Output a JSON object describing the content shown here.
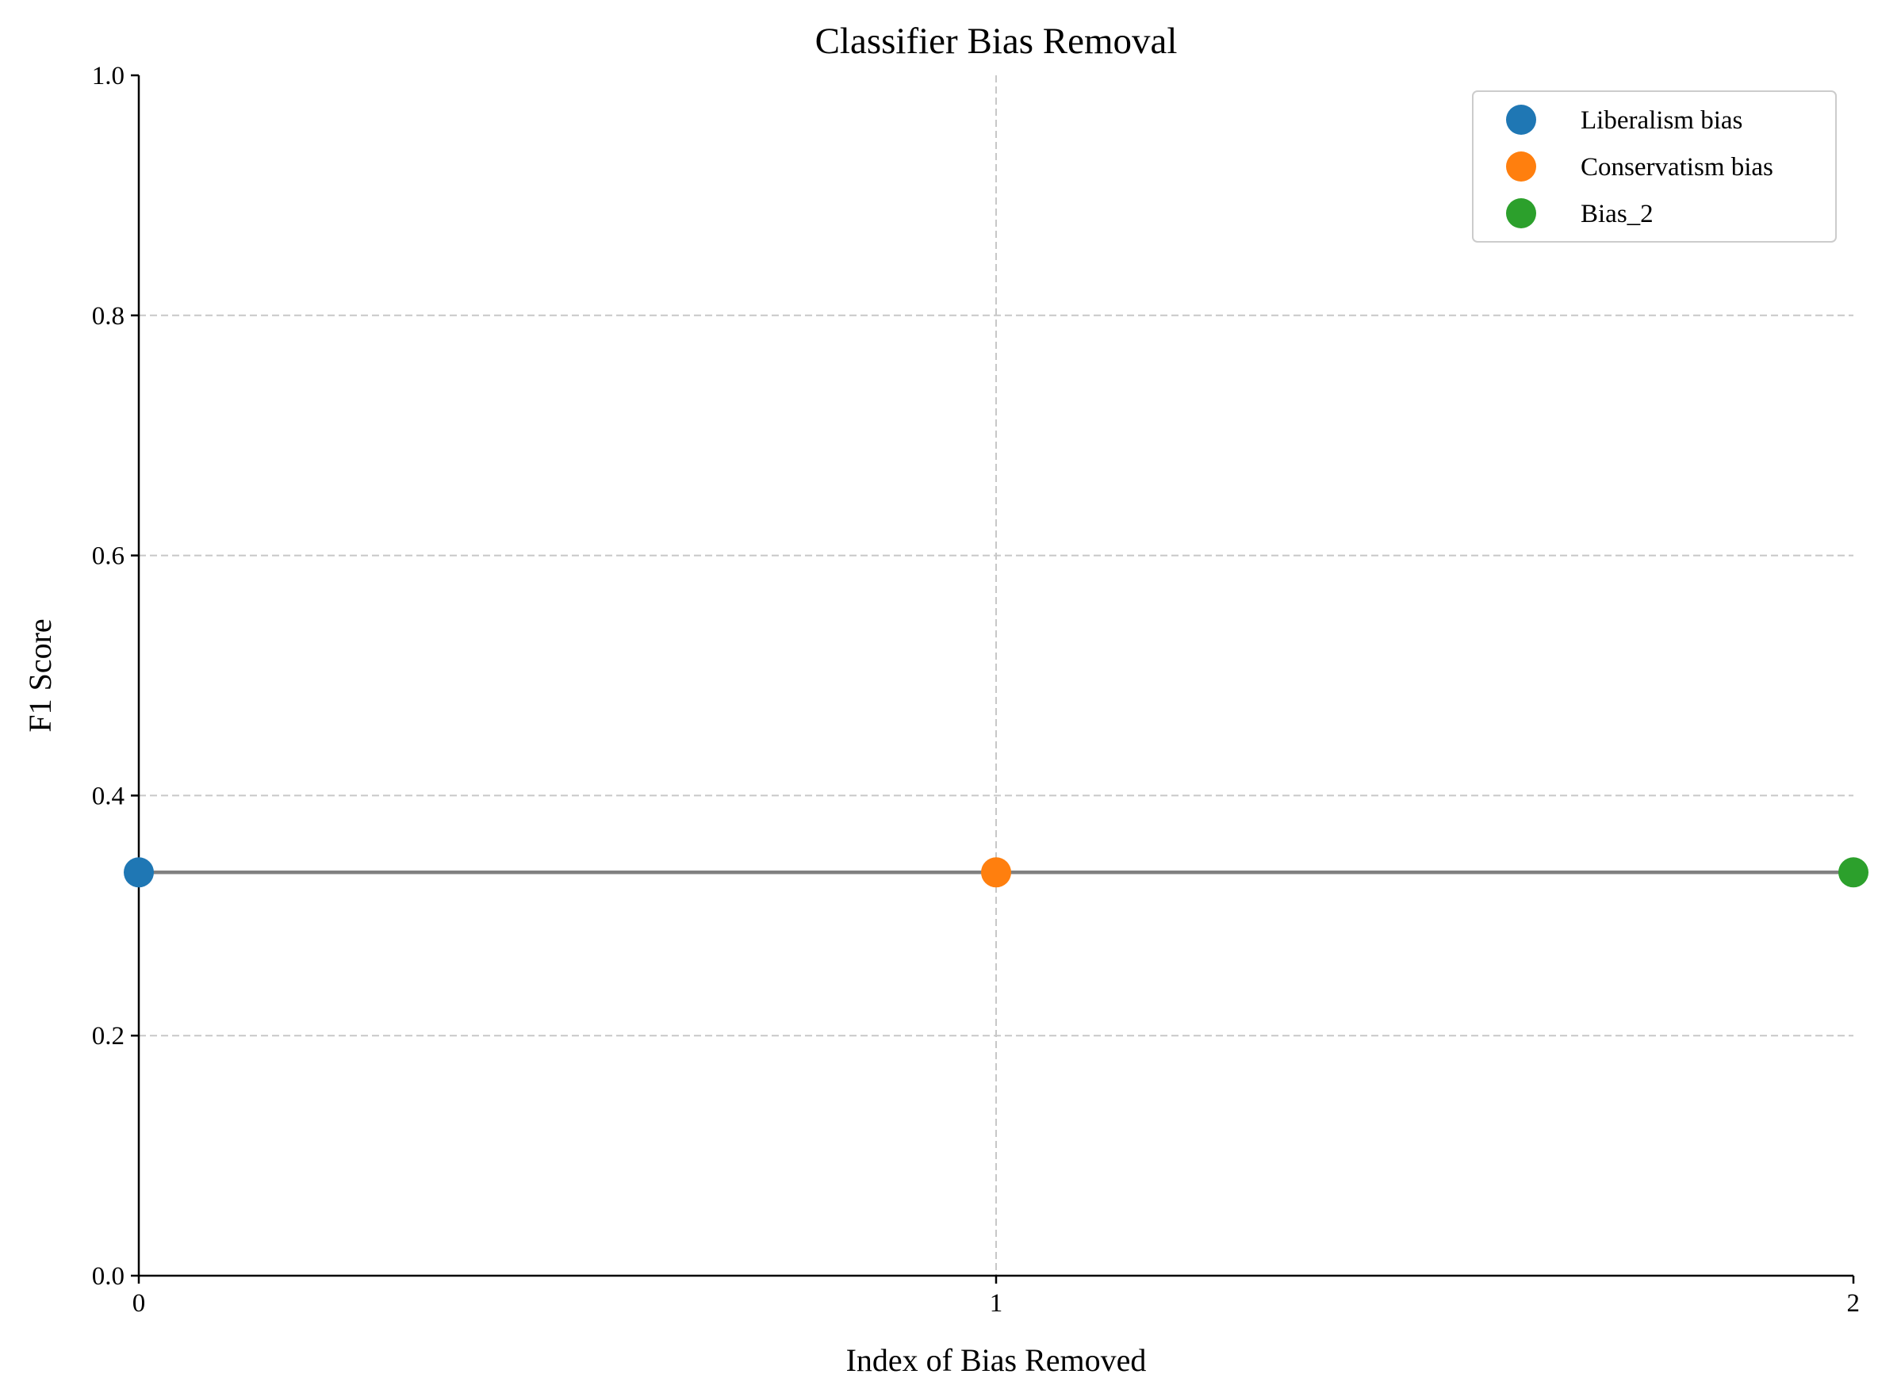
{
  "chart_data": {
    "type": "scatter",
    "title": "Classifier Bias Removal",
    "xlabel": "Index of Bias Removed",
    "ylabel": "F1 Score",
    "xlim": [
      0,
      2
    ],
    "ylim": [
      0,
      1
    ],
    "xticks": [
      0,
      1,
      2
    ],
    "xtick_labels": [
      "0",
      "1",
      "2"
    ],
    "yticks": [
      0.0,
      0.2,
      0.4,
      0.6,
      0.8,
      1.0
    ],
    "ytick_labels": [
      "0.0",
      "0.2",
      "0.4",
      "0.6",
      "0.8",
      "1.0"
    ],
    "grid": true,
    "legend_position": "top-right",
    "connecting_line": {
      "x": [
        0,
        1,
        2
      ],
      "y": [
        0.336,
        0.336,
        0.336
      ],
      "color": "#808080"
    },
    "series": [
      {
        "name": "Liberalism bias",
        "x": [
          0
        ],
        "y": [
          0.336
        ],
        "color": "#1f77b4"
      },
      {
        "name": "Conservatism bias",
        "x": [
          1
        ],
        "y": [
          0.336
        ],
        "color": "#ff7f0e"
      },
      {
        "name": "Bias_2",
        "x": [
          2
        ],
        "y": [
          0.336
        ],
        "color": "#2ca02c"
      }
    ]
  }
}
